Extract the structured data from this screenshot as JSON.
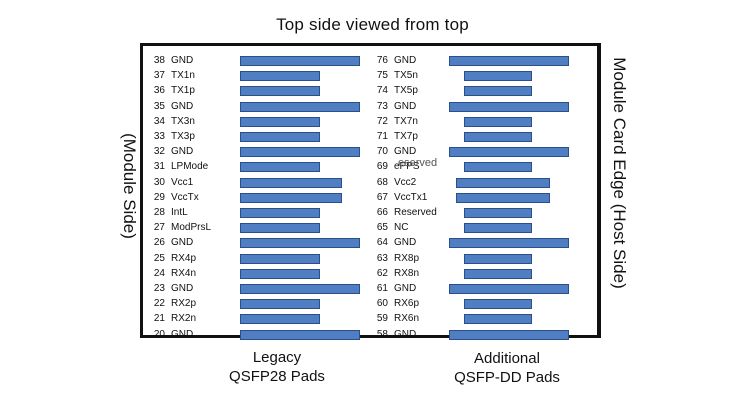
{
  "title": "Top side viewed from top",
  "left_side_label": "(Module Side)",
  "right_side_label": "Module Card Edge (Host Side)",
  "caption_legacy": [
    "Legacy",
    "QSFP28 Pads"
  ],
  "caption_additional": [
    "Additional",
    "QSFP-DD Pads"
  ],
  "pad_color": "#4f7ec3",
  "reserved_overlay": "eserved",
  "left_pins": [
    {
      "num": "38",
      "name": "GND",
      "pad": "long"
    },
    {
      "num": "37",
      "name": "TX1n",
      "pad": "short"
    },
    {
      "num": "36",
      "name": "TX1p",
      "pad": "short"
    },
    {
      "num": "35",
      "name": "GND",
      "pad": "long"
    },
    {
      "num": "34",
      "name": "TX3n",
      "pad": "short"
    },
    {
      "num": "33",
      "name": "TX3p",
      "pad": "short"
    },
    {
      "num": "32",
      "name": "GND",
      "pad": "long"
    },
    {
      "num": "31",
      "name": "LPMode",
      "pad": "short"
    },
    {
      "num": "30",
      "name": "Vcc1",
      "pad": "medium"
    },
    {
      "num": "29",
      "name": "VccTx",
      "pad": "medium"
    },
    {
      "num": "28",
      "name": "IntL",
      "pad": "short"
    },
    {
      "num": "27",
      "name": "ModPrsL",
      "pad": "short"
    },
    {
      "num": "26",
      "name": "GND",
      "pad": "long"
    },
    {
      "num": "25",
      "name": "RX4p",
      "pad": "short"
    },
    {
      "num": "24",
      "name": "RX4n",
      "pad": "short"
    },
    {
      "num": "23",
      "name": "GND",
      "pad": "long"
    },
    {
      "num": "22",
      "name": "RX2p",
      "pad": "short"
    },
    {
      "num": "21",
      "name": "RX2n",
      "pad": "short"
    },
    {
      "num": "20",
      "name": "GND",
      "pad": "long"
    }
  ],
  "right_pins": [
    {
      "num": "76",
      "name": "GND",
      "pad": "long"
    },
    {
      "num": "75",
      "name": "TX5n",
      "pad": "short"
    },
    {
      "num": "74",
      "name": "TX5p",
      "pad": "short"
    },
    {
      "num": "73",
      "name": "GND",
      "pad": "long"
    },
    {
      "num": "72",
      "name": "TX7n",
      "pad": "short"
    },
    {
      "num": "71",
      "name": "TX7p",
      "pad": "short"
    },
    {
      "num": "70",
      "name": "GND",
      "pad": "long"
    },
    {
      "num": "69",
      "name": "ePPS",
      "pad": "short"
    },
    {
      "num": "68",
      "name": "Vcc2",
      "pad": "medium"
    },
    {
      "num": "67",
      "name": "VccTx1",
      "pad": "medium"
    },
    {
      "num": "66",
      "name": "Reserved",
      "pad": "short"
    },
    {
      "num": "65",
      "name": "NC",
      "pad": "short"
    },
    {
      "num": "64",
      "name": "GND",
      "pad": "long"
    },
    {
      "num": "63",
      "name": "RX8p",
      "pad": "short"
    },
    {
      "num": "62",
      "name": "RX8n",
      "pad": "short"
    },
    {
      "num": "61",
      "name": "GND",
      "pad": "long"
    },
    {
      "num": "60",
      "name": "RX6p",
      "pad": "short"
    },
    {
      "num": "59",
      "name": "RX6n",
      "pad": "short"
    },
    {
      "num": "58",
      "name": "GND",
      "pad": "long"
    }
  ]
}
